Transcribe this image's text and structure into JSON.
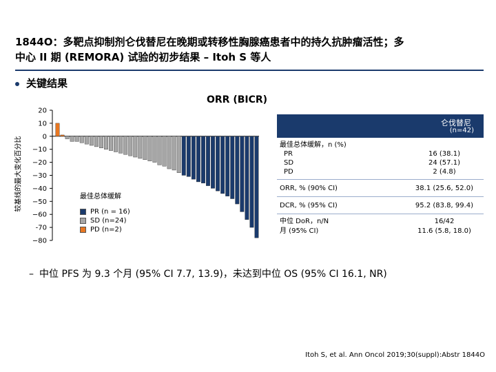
{
  "header": {
    "title_line1": "1844O：多靶点抑制剂仑伐替尼在晚期或转移性胸腺癌患者中的持久抗肿瘤活性；多",
    "title_line2": "中心 II 期 (REMORA) 试验的初步结果 – Itoh S 等人"
  },
  "section": {
    "bullet": "关键结果"
  },
  "chart_data": {
    "type": "bar",
    "title": "ORR (BICR)",
    "ylabel": "较基线的最大变化百分比",
    "xlabel": "",
    "ylim": [
      -80,
      20
    ],
    "yticks": [
      "20",
      "10",
      "0",
      "−10",
      "−20",
      "−30",
      "−40",
      "−50",
      "−60",
      "-70",
      "−80"
    ],
    "ytick_values": [
      20,
      10,
      0,
      -10,
      -20,
      -30,
      -40,
      -50,
      -60,
      -70,
      -80
    ],
    "grid": false,
    "legend_title": "最佳总体缓解",
    "legend_position": "bottom-left",
    "series": [
      {
        "name": "PR (n = 16)",
        "color": "#1a3a6c"
      },
      {
        "name": "SD (n=24)",
        "color": "#a6a6a6"
      },
      {
        "name": "PD (n=2)",
        "color": "#e87722"
      }
    ],
    "values": [
      10,
      1,
      -2,
      -4,
      -4,
      -5,
      -6,
      -7,
      -8,
      -9,
      -10,
      -11,
      -12,
      -13,
      -14,
      -15,
      -16,
      -17,
      -18,
      -19,
      -20,
      -22,
      -23,
      -25,
      -26,
      -28,
      -30,
      -31,
      -33,
      -35,
      -36,
      -38,
      -40,
      -42,
      -44,
      -46,
      -48,
      -52,
      -58,
      -64,
      -70,
      -78
    ],
    "categories_response": [
      "PD",
      "PD",
      "SD",
      "SD",
      "SD",
      "SD",
      "SD",
      "SD",
      "SD",
      "SD",
      "SD",
      "SD",
      "SD",
      "SD",
      "SD",
      "SD",
      "SD",
      "SD",
      "SD",
      "SD",
      "SD",
      "SD",
      "SD",
      "SD",
      "SD",
      "SD",
      "PR",
      "PR",
      "PR",
      "PR",
      "PR",
      "PR",
      "PR",
      "PR",
      "PR",
      "PR",
      "PR",
      "PR",
      "PR",
      "PR",
      "PR",
      "PR"
    ]
  },
  "table": {
    "header_col": "仑伐替尼",
    "header_n": "(n=42)",
    "best_label": "最佳总体缓解，n (%)",
    "best_rows": [
      "PR",
      "SD",
      "PD"
    ],
    "best_values": [
      "16 (38.1)",
      "24 (57.1)",
      "2 (4.8)"
    ],
    "orr_label": "ORR, % (90% CI)",
    "orr_value": "38.1 (25.6, 52.0)",
    "dcr_label": "DCR, % (95% CI)",
    "dcr_value": "95.2 (83.8, 99.4)",
    "dor_label1": "中位 DoR，n/N",
    "dor_label2": "月 (95% CI)",
    "dor_value1": "16/42",
    "dor_value2": "11.6 (5.8, 18.0)"
  },
  "summary": {
    "dash": "–",
    "text": "中位 PFS 为 9.3 个月 (95% CI 7.7, 13.9)，未达到中位 OS (95% CI 16.1, NR)"
  },
  "citation": "Itoh S, et al. Ann Oncol 2019;30(suppl):Abstr 1844O"
}
